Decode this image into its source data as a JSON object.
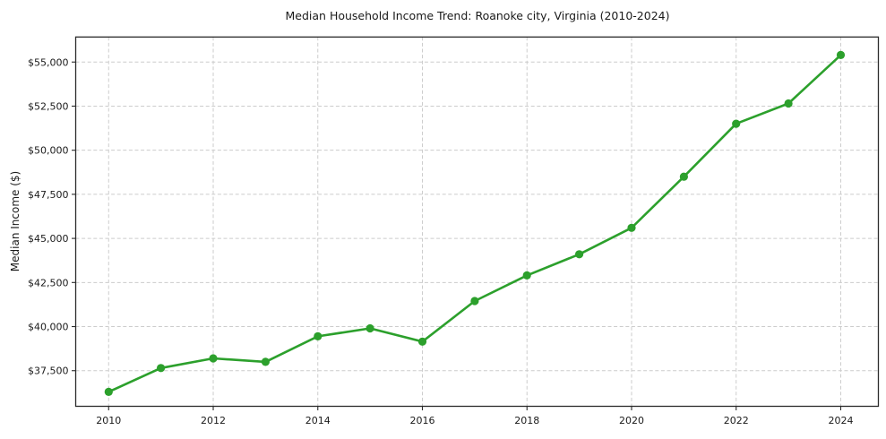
{
  "chart_data": {
    "type": "line",
    "title": "Median Household Income Trend: Roanoke city, Virginia (2010-2024)",
    "xlabel": "",
    "ylabel": "Median Income ($)",
    "series": [
      {
        "name": "Median Household Income",
        "x": [
          2010,
          2011,
          2012,
          2013,
          2014,
          2015,
          2016,
          2017,
          2018,
          2019,
          2020,
          2021,
          2022,
          2023,
          2024
        ],
        "values": [
          36300,
          37650,
          38200,
          38000,
          39450,
          39900,
          39150,
          41450,
          42900,
          44100,
          45600,
          48500,
          51500,
          52650,
          55400
        ]
      }
    ],
    "x_ticks": [
      {
        "value": 2010,
        "label": "2010"
      },
      {
        "value": 2012,
        "label": "2012"
      },
      {
        "value": 2014,
        "label": "2014"
      },
      {
        "value": 2016,
        "label": "2016"
      },
      {
        "value": 2018,
        "label": "2018"
      },
      {
        "value": 2020,
        "label": "2020"
      },
      {
        "value": 2022,
        "label": "2022"
      },
      {
        "value": 2024,
        "label": "2024"
      }
    ],
    "y_ticks": [
      {
        "value": 37500,
        "label": "$37,500"
      },
      {
        "value": 40000,
        "label": "$40,000"
      },
      {
        "value": 42500,
        "label": "$42,500"
      },
      {
        "value": 45000,
        "label": "$45,000"
      },
      {
        "value": 47500,
        "label": "$47,500"
      },
      {
        "value": 50000,
        "label": "$50,000"
      },
      {
        "value": 52500,
        "label": "$52,500"
      },
      {
        "value": 55000,
        "label": "$55,000"
      }
    ],
    "xlim": [
      2009.37,
      2024.72
    ],
    "ylim": [
      35480,
      56420
    ],
    "grid": true,
    "grid_style": "dashed",
    "legend": "none",
    "colors": {
      "line": "#2ca02c",
      "marker": "#2ca02c",
      "grid": "#cccccc",
      "axis": "#2b2b2b",
      "text": "#1a1a1a",
      "background": "#ffffff"
    }
  }
}
